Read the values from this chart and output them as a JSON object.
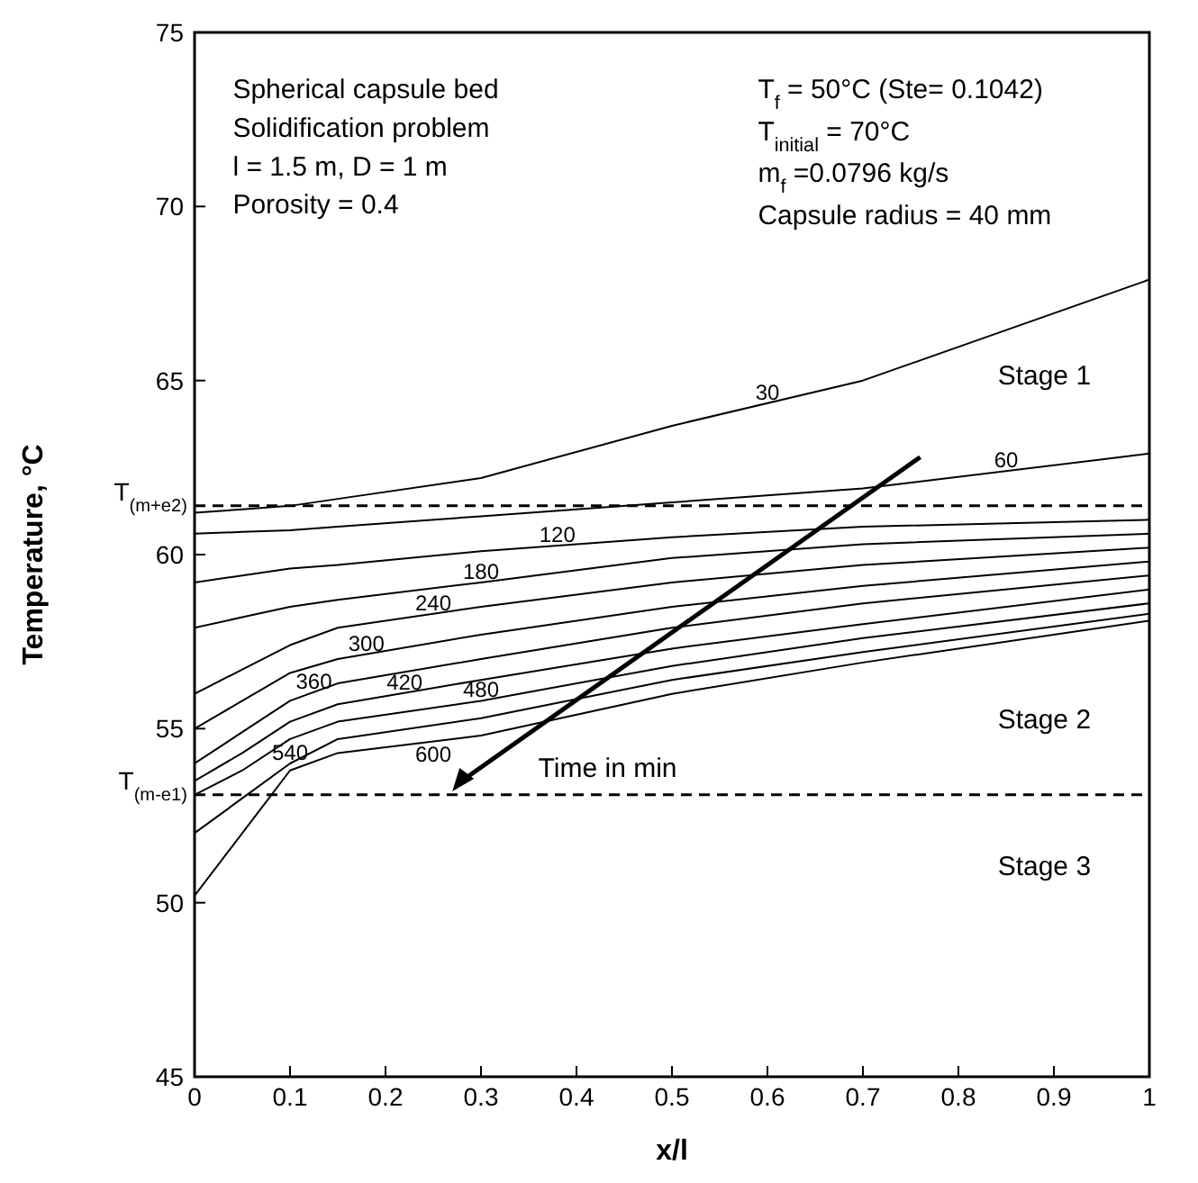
{
  "chart_data": {
    "type": "line",
    "xlabel": "x/l",
    "ylabel": "Temperature, °C",
    "x": [
      0,
      0.05,
      0.1,
      0.15,
      0.3,
      0.5,
      0.7,
      1
    ],
    "series": [
      {
        "name": "30",
        "color": "#000000",
        "values": [
          61.2,
          61.3,
          61.4,
          61.6,
          62.2,
          63.7,
          65.0,
          67.9
        ]
      },
      {
        "name": "60",
        "color": "#000000",
        "values": [
          60.6,
          60.65,
          60.7,
          60.8,
          61.1,
          61.5,
          61.9,
          62.9
        ]
      },
      {
        "name": "120",
        "color": "#000000",
        "values": [
          59.2,
          59.4,
          59.6,
          59.7,
          60.1,
          60.5,
          60.8,
          61.0
        ]
      },
      {
        "name": "180",
        "color": "#000000",
        "values": [
          57.9,
          58.2,
          58.5,
          58.7,
          59.2,
          59.9,
          60.3,
          60.6
        ]
      },
      {
        "name": "240",
        "color": "#000000",
        "values": [
          56.0,
          56.7,
          57.4,
          57.9,
          58.5,
          59.2,
          59.7,
          60.2
        ]
      },
      {
        "name": "300",
        "color": "#000000",
        "values": [
          55.0,
          55.8,
          56.6,
          57.0,
          57.7,
          58.5,
          59.1,
          59.8
        ]
      },
      {
        "name": "360",
        "color": "#000000",
        "values": [
          54.0,
          54.9,
          55.8,
          56.3,
          57.0,
          57.9,
          58.6,
          59.4
        ]
      },
      {
        "name": "420",
        "color": "#000000",
        "values": [
          53.5,
          54.3,
          55.2,
          55.7,
          56.4,
          57.3,
          58.0,
          59.0
        ]
      },
      {
        "name": "480",
        "color": "#000000",
        "values": [
          53.1,
          53.8,
          54.7,
          55.2,
          55.8,
          56.8,
          57.6,
          58.6
        ]
      },
      {
        "name": "540",
        "color": "#000000",
        "values": [
          52.0,
          53.0,
          54.0,
          54.7,
          55.3,
          56.4,
          57.2,
          58.3
        ]
      },
      {
        "name": "600",
        "color": "#000000",
        "values": [
          50.2,
          52.0,
          53.8,
          54.3,
          54.8,
          56.0,
          56.9,
          58.1
        ]
      }
    ],
    "xlim": [
      0,
      1
    ],
    "xticks": [
      0,
      0.1,
      0.2,
      0.3,
      0.4,
      0.5,
      0.6,
      0.7,
      0.8,
      0.9,
      1
    ],
    "ylim": [
      45,
      75
    ],
    "yticks": [
      45,
      50,
      55,
      60,
      65,
      70,
      75
    ],
    "ref_lines": [
      {
        "axis": "y",
        "value": 61.4,
        "label": "T$_{(m+e2)}$",
        "color": "#000000",
        "line_style": "dashed"
      },
      {
        "axis": "y",
        "value": 53.1,
        "label": "T$_{(m-e1)}$",
        "color": "#000000",
        "line_style": "dashed"
      }
    ],
    "annotations": [
      "Spherical capsule bed",
      "Solidification problem",
      "l = 1.5 m, D = 1 m",
      "Porosity = 0.4",
      "T$_{f}$ = 50°C (Ste= 0.1042)",
      "T$_{initial}$ = 70°C",
      "m$_{f}$ =0.0796 kg/s",
      "Capsule radius = 40 mm",
      "Stage 1",
      "Stage 2",
      "Stage 3",
      "Time in min"
    ],
    "grid": false,
    "legend": false,
    "marker": "none",
    "line_style": "solid"
  }
}
